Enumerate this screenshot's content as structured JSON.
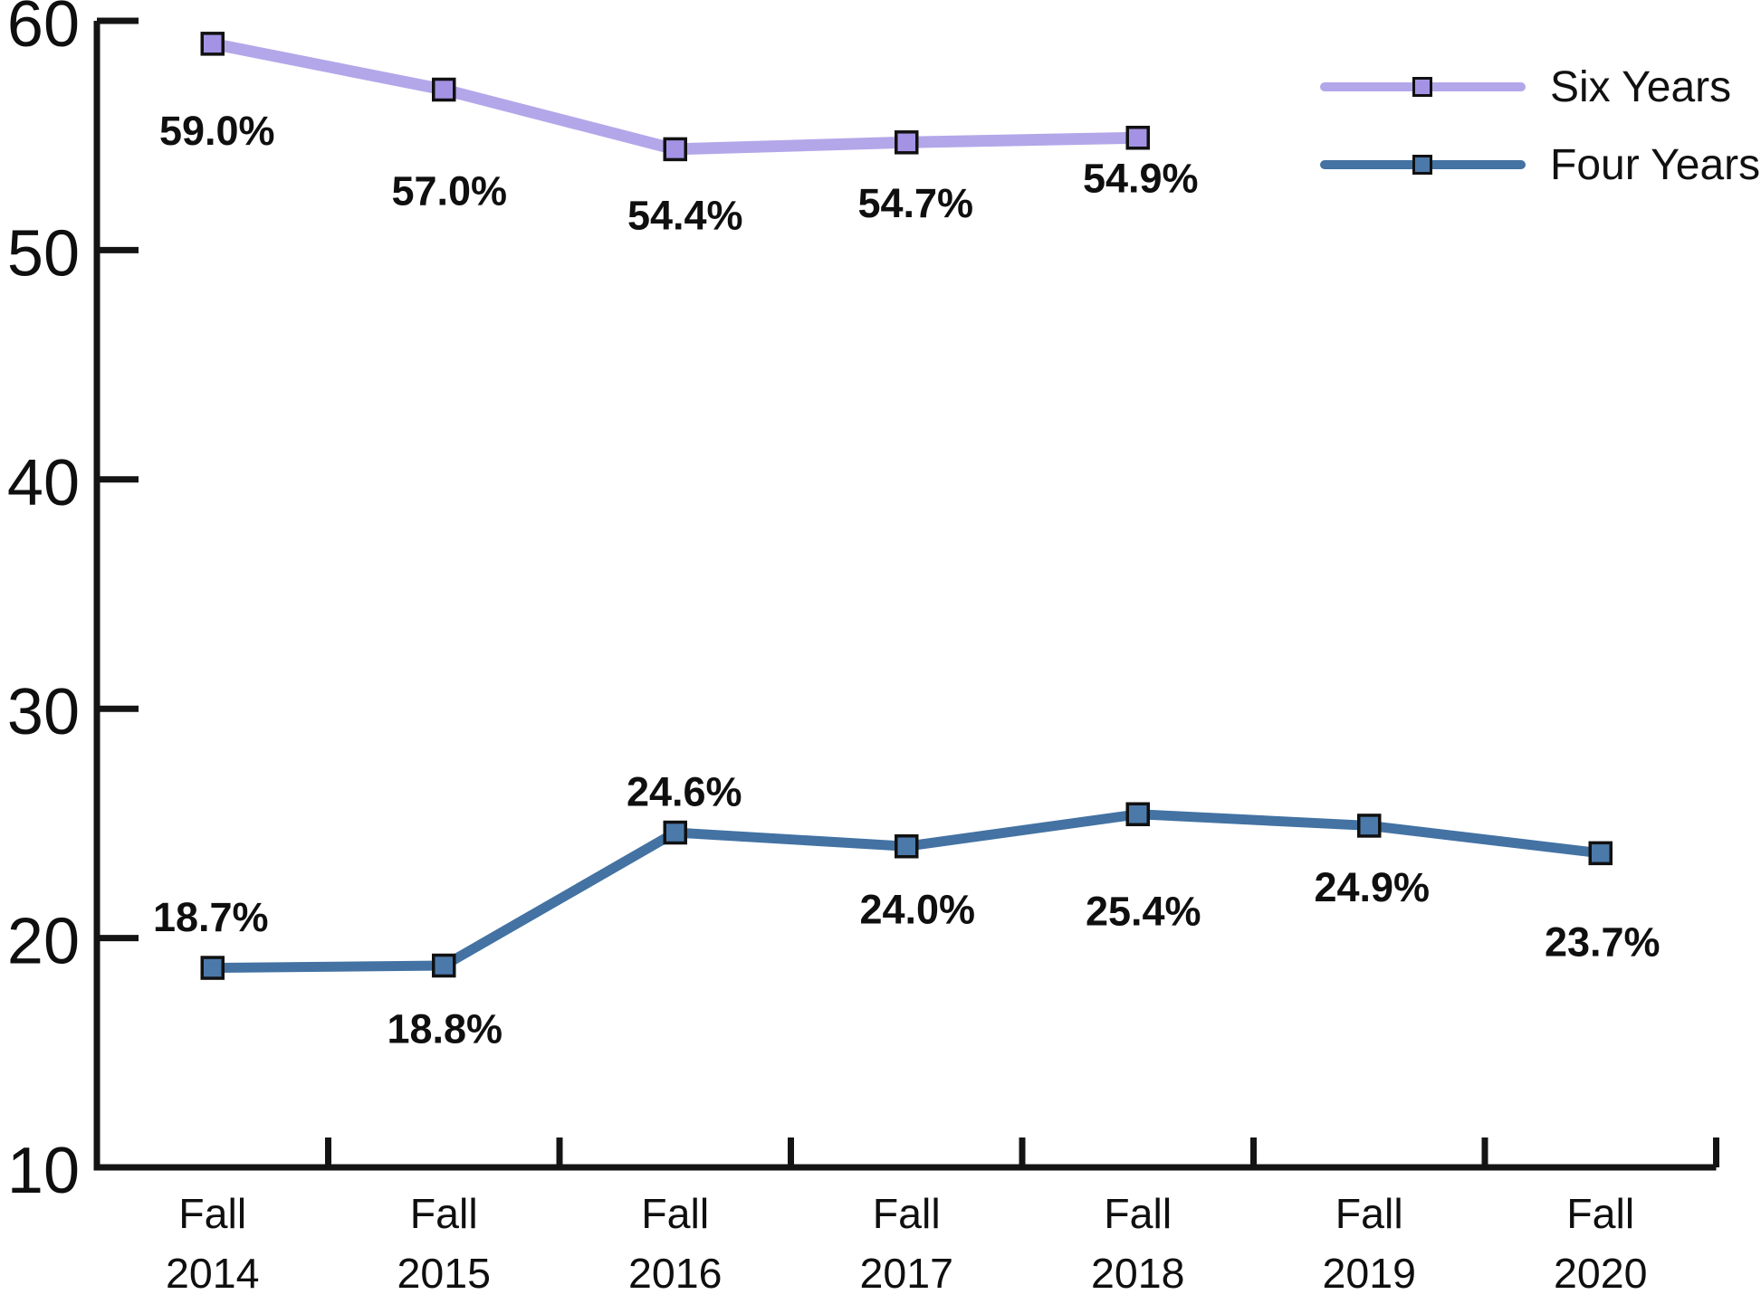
{
  "chart_data": {
    "type": "line",
    "title": "",
    "categories": [
      "Fall 2014",
      "Fall 2015",
      "Fall 2016",
      "Fall 2017",
      "Fall 2018",
      "Fall 2019",
      "Fall 2020"
    ],
    "ylim": [
      10,
      60
    ],
    "yticks": [
      10,
      20,
      30,
      40,
      50,
      60
    ],
    "grid": false,
    "legend_position": "top-right",
    "axis_color": "#141414",
    "label_color": "#0f0f0f",
    "series": [
      {
        "name": "Six Years",
        "line_color": "#b3a7e9",
        "marker_color": "#a493e4",
        "marker_shape": "square",
        "values": [
          59.0,
          57.0,
          54.4,
          54.7,
          54.9,
          null,
          null
        ],
        "point_labels": [
          "59.0%",
          "57.0%",
          "54.4%",
          "54.7%",
          "54.9%",
          null,
          null
        ],
        "label_offsets": [
          {
            "dx": 5,
            "dy": 96
          },
          {
            "dx": 6,
            "dy": 112
          },
          {
            "dx": 11,
            "dy": 73
          },
          {
            "dx": 10,
            "dy": 67
          },
          {
            "dx": 3,
            "dy": 45
          },
          null,
          null
        ]
      },
      {
        "name": "Four Years",
        "line_color": "#4372a3",
        "marker_color": "#4b79aa",
        "marker_shape": "square",
        "values": [
          18.7,
          18.8,
          24.6,
          24.0,
          25.4,
          24.9,
          23.7
        ],
        "point_labels": [
          "18.7%",
          "18.8%",
          "24.6%",
          "24.0%",
          "25.4%",
          "24.9%",
          "23.7%"
        ],
        "label_offsets": [
          {
            "dx": -2,
            "dy": -56
          },
          {
            "dx": 1,
            "dy": 70
          },
          {
            "dx": 10,
            "dy": -45
          },
          {
            "dx": 12,
            "dy": 70
          },
          {
            "dx": 6,
            "dy": 107
          },
          {
            "dx": 3,
            "dy": 68
          },
          {
            "dx": 2,
            "dy": 98
          }
        ]
      }
    ]
  }
}
